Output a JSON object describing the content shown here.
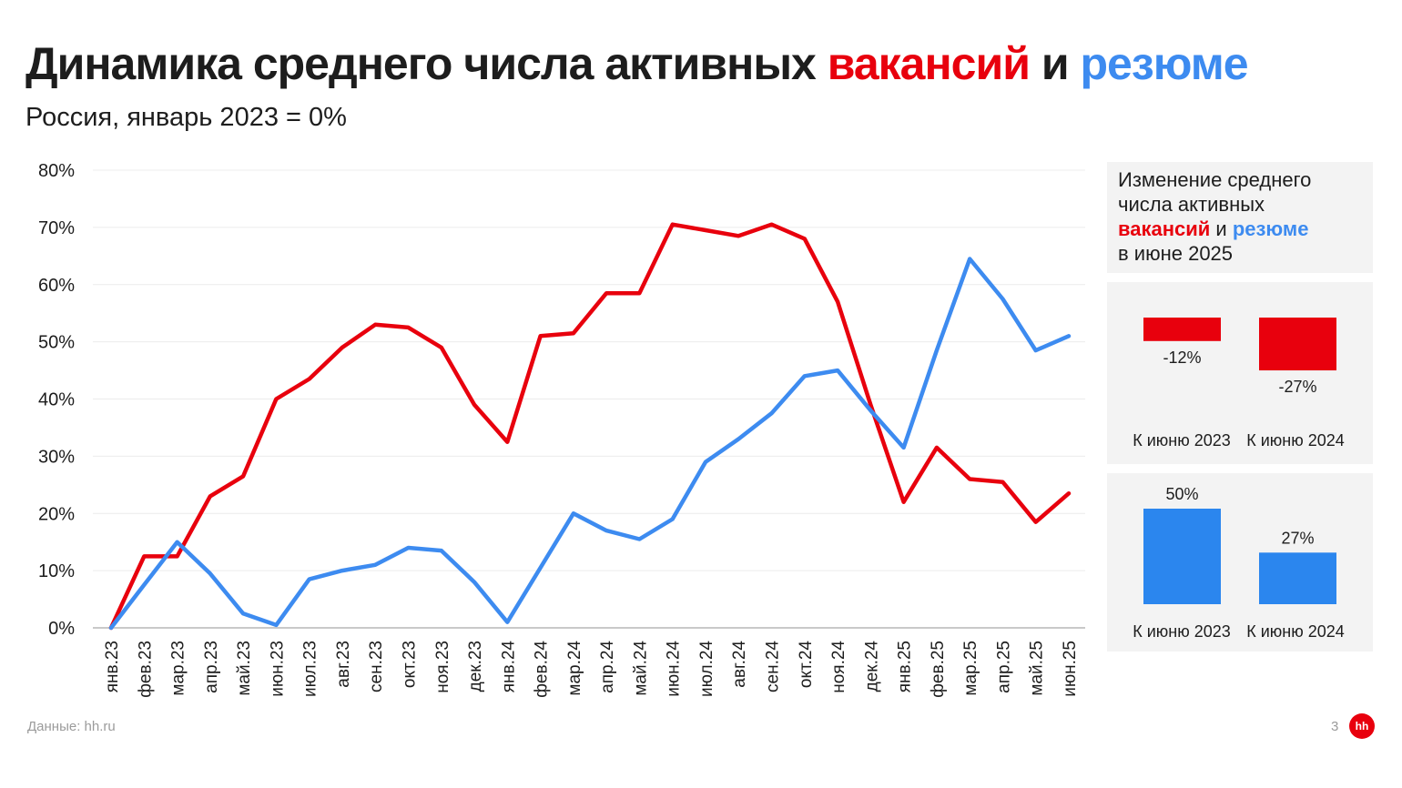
{
  "title": {
    "part1": "Динамика среднего числа активных ",
    "vacancies": "вакансий",
    "and": " и ",
    "resumes": "резюме"
  },
  "subtitle": "Россия, январь 2023 = 0%",
  "legend": {
    "line1": "Изменение среднего",
    "line2": "числа активных",
    "vacancies": "вакансий",
    "and": " и ",
    "resumes": "резюме",
    "line4": "в июне 2025"
  },
  "colors": {
    "vacancies": "#e8000d",
    "resumes": "#3d8bf0"
  },
  "chart_data": [
    {
      "type": "line",
      "categories": [
        "янв.23",
        "фев.23",
        "мар.23",
        "апр.23",
        "май.23",
        "июн.23",
        "июл.23",
        "авг.23",
        "сен.23",
        "окт.23",
        "ноя.23",
        "дек.23",
        "янв.24",
        "фев.24",
        "мар.24",
        "апр.24",
        "май.24",
        "июн.24",
        "июл.24",
        "авг.24",
        "сен.24",
        "окт.24",
        "ноя.24",
        "дек.24",
        "янв.25",
        "фев.25",
        "мар.25",
        "апр.25",
        "май.25",
        "июн.25"
      ],
      "yticks": [
        "0%",
        "10%",
        "20%",
        "30%",
        "40%",
        "50%",
        "60%",
        "70%",
        "80%"
      ],
      "ylim": [
        0,
        80
      ],
      "grid": true,
      "series": [
        {
          "name": "вакансий",
          "color": "#e8000d",
          "values": [
            0,
            12.5,
            12.5,
            23,
            26.5,
            40,
            43.5,
            49,
            53,
            52.5,
            49,
            39,
            32.5,
            51,
            51.5,
            58.5,
            58.5,
            70.5,
            69.5,
            68.5,
            70.5,
            68,
            57,
            39,
            22,
            31.5,
            26,
            25.5,
            18.5,
            23.5
          ]
        },
        {
          "name": "резюме",
          "color": "#3d8bf0",
          "values": [
            0,
            7.5,
            15,
            9.5,
            2.5,
            0.5,
            8.5,
            10,
            11,
            14,
            13.5,
            8,
            1,
            10.5,
            20,
            17,
            15.5,
            19,
            29,
            33,
            37.5,
            44,
            45,
            38,
            31.5,
            48.5,
            64.5,
            57.5,
            48.5,
            51
          ]
        }
      ]
    },
    {
      "type": "bar",
      "categories": [
        "К июню 2023",
        "К июню 2024"
      ],
      "values": [
        -12,
        -27
      ],
      "labels": [
        "-12%",
        "-27%"
      ],
      "color": "#e8000d"
    },
    {
      "type": "bar",
      "categories": [
        "К июню 2023",
        "К июню 2024"
      ],
      "values": [
        50,
        27
      ],
      "labels": [
        "50%",
        "27%"
      ],
      "color": "#2b86ee"
    }
  ],
  "footer": {
    "source": "Данные: hh.ru",
    "page": "3",
    "logo": "hh"
  }
}
